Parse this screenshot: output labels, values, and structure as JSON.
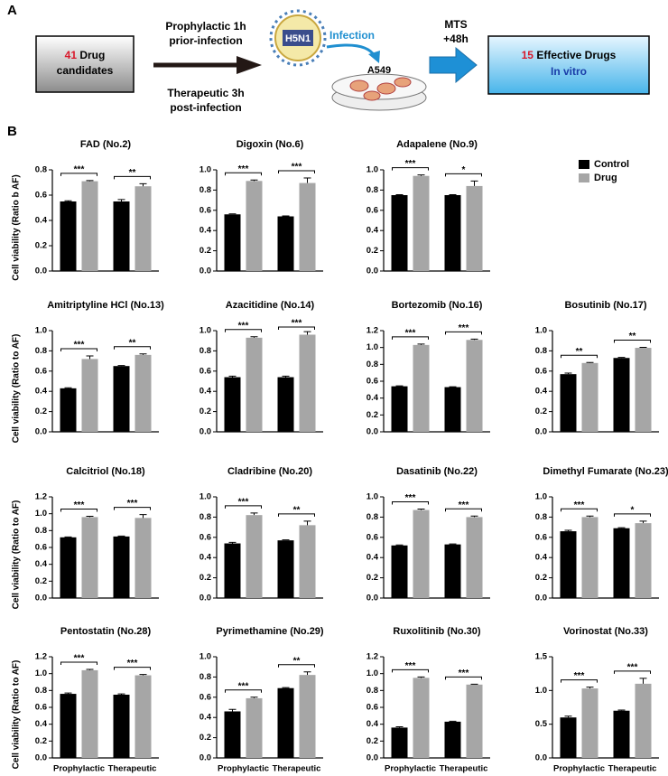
{
  "panel_a": {
    "label": "A",
    "box_left": {
      "number": "41",
      "line1": "Drug",
      "line2": "candidates"
    },
    "prophylactic": [
      "Prophylactic 1h",
      "prior-infection"
    ],
    "therapeutic": [
      "Therapeutic 3h",
      "post-infection"
    ],
    "virus": "H5N1",
    "infection": "Infection",
    "cell_line": "A549",
    "mts": [
      "MTS",
      "+48h"
    ],
    "box_right": {
      "number": "15",
      "line1": "Effective Drugs",
      "line2": "In vitro"
    }
  },
  "panel_b_label": "B",
  "chart_data": [
    {
      "type": "bar",
      "title": "FAD (No.2)",
      "ylabel": "Cell viability (Ratio b AF)",
      "categories": [
        null,
        null
      ],
      "series": [
        {
          "name": "Control",
          "color": "#000000",
          "values": [
            0.55,
            0.55
          ],
          "errors": [
            0.005,
            0.015
          ]
        },
        {
          "name": "Drug",
          "color": "#a6a6a6",
          "values": [
            0.71,
            0.67
          ],
          "errors": [
            0.005,
            0.02
          ]
        }
      ],
      "significance": [
        "***",
        "**"
      ],
      "ylim": [
        0,
        0.8
      ],
      "yticks": [
        {
          "value": 0,
          "label": "0.0"
        },
        0.2,
        0.4,
        0.6,
        0.8
      ]
    },
    {
      "type": "bar",
      "title": "Digoxin (No.6)",
      "categories": [
        null,
        null
      ],
      "series": [
        {
          "name": "Control",
          "color": "#000000",
          "values": [
            0.56,
            0.54
          ],
          "errors": [
            0.005,
            0.005
          ]
        },
        {
          "name": "Drug",
          "color": "#a6a6a6",
          "values": [
            0.89,
            0.87
          ],
          "errors": [
            0.01,
            0.05
          ]
        }
      ],
      "significance": [
        "***",
        "***"
      ],
      "ylim": [
        0,
        1
      ],
      "yticks": [
        {
          "value": 0,
          "label": "0.0"
        },
        0.2,
        0.4,
        0.6,
        0.8,
        {
          "value": 1,
          "label": "1.0"
        }
      ]
    },
    {
      "type": "bar",
      "title": "Adapalene (No.9)",
      "categories": [
        null,
        null
      ],
      "legend": "right",
      "series": [
        {
          "name": "Control",
          "color": "#000000",
          "values": [
            0.75,
            0.75
          ],
          "errors": [
            0.005,
            0.005
          ]
        },
        {
          "name": "Drug",
          "color": "#a6a6a6",
          "values": [
            0.94,
            0.84
          ],
          "errors": [
            0.01,
            0.05
          ]
        }
      ],
      "significance": [
        "***",
        "*"
      ],
      "ylim": [
        0,
        1
      ],
      "yticks": [
        {
          "value": 0,
          "label": "0.0"
        },
        0.2,
        0.4,
        0.6,
        0.8,
        {
          "value": 1,
          "label": "1.0"
        }
      ]
    },
    {
      "type": "bar",
      "title": "Amitriptyline HCl (No.13)",
      "ylabel": "Cell viability (Ratio to AF)",
      "categories": [
        null,
        null
      ],
      "series": [
        {
          "name": "Control",
          "color": "#000000",
          "values": [
            0.43,
            0.65
          ],
          "errors": [
            0.005,
            0.005
          ]
        },
        {
          "name": "Drug",
          "color": "#a6a6a6",
          "values": [
            0.72,
            0.76
          ],
          "errors": [
            0.03,
            0.01
          ]
        }
      ],
      "significance": [
        "***",
        "**"
      ],
      "ylim": [
        0,
        1
      ],
      "yticks": [
        {
          "value": 0,
          "label": "0.0"
        },
        0.2,
        0.4,
        0.6,
        0.8,
        {
          "value": 1,
          "label": "1.0"
        }
      ]
    },
    {
      "type": "bar",
      "title": "Azacitidine (No.14)",
      "categories": [
        null,
        null
      ],
      "series": [
        {
          "name": "Control",
          "color": "#000000",
          "values": [
            0.54,
            0.54
          ],
          "errors": [
            0.01,
            0.01
          ]
        },
        {
          "name": "Drug",
          "color": "#a6a6a6",
          "values": [
            0.93,
            0.96
          ],
          "errors": [
            0.01,
            0.03
          ]
        }
      ],
      "significance": [
        "***",
        "***"
      ],
      "ylim": [
        0,
        1
      ],
      "yticks": [
        {
          "value": 0,
          "label": "0.0"
        },
        0.2,
        0.4,
        0.6,
        0.8,
        {
          "value": 1,
          "label": "1.0"
        }
      ]
    },
    {
      "type": "bar",
      "title": "Bortezomib (No.16)",
      "categories": [
        null,
        null
      ],
      "series": [
        {
          "name": "Control",
          "color": "#000000",
          "values": [
            0.54,
            0.53
          ],
          "errors": [
            0.005,
            0.005
          ]
        },
        {
          "name": "Drug",
          "color": "#a6a6a6",
          "values": [
            1.03,
            1.09
          ],
          "errors": [
            0.01,
            0.01
          ]
        }
      ],
      "significance": [
        "***",
        "***"
      ],
      "ylim": [
        0,
        1.2
      ],
      "yticks": [
        {
          "value": 0,
          "label": "0.0"
        },
        0.2,
        0.4,
        0.6,
        0.8,
        {
          "value": 1,
          "label": "1.0"
        },
        1.2
      ]
    },
    {
      "type": "bar",
      "title": "Bosutinib (No.17)",
      "categories": [
        null,
        null
      ],
      "series": [
        {
          "name": "Control",
          "color": "#000000",
          "values": [
            0.57,
            0.73
          ],
          "errors": [
            0.01,
            0.005
          ]
        },
        {
          "name": "Drug",
          "color": "#a6a6a6",
          "values": [
            0.68,
            0.83
          ],
          "errors": [
            0.005,
            0.005
          ]
        }
      ],
      "significance": [
        "**",
        "**"
      ],
      "ylim": [
        0,
        1
      ],
      "yticks": [
        {
          "value": 0,
          "label": "0.0"
        },
        0.2,
        0.4,
        0.6,
        0.8,
        {
          "value": 1,
          "label": "1.0"
        }
      ]
    },
    {
      "type": "bar",
      "title": "Calcitriol (No.18)",
      "ylabel": "Cell viability (Ratio to AF)",
      "categories": [
        null,
        null
      ],
      "series": [
        {
          "name": "Control",
          "color": "#000000",
          "values": [
            0.72,
            0.73
          ],
          "errors": [
            0.005,
            0.005
          ]
        },
        {
          "name": "Drug",
          "color": "#a6a6a6",
          "values": [
            0.96,
            0.95
          ],
          "errors": [
            0.01,
            0.04
          ]
        }
      ],
      "significance": [
        "***",
        "***"
      ],
      "ylim": [
        0,
        1.2
      ],
      "yticks": [
        {
          "value": 0,
          "label": "0.0"
        },
        0.2,
        0.4,
        0.6,
        0.8,
        {
          "value": 1,
          "label": "1.0"
        },
        1.2
      ]
    },
    {
      "type": "bar",
      "title": "Cladribine (No.20)",
      "categories": [
        null,
        null
      ],
      "series": [
        {
          "name": "Control",
          "color": "#000000",
          "values": [
            0.54,
            0.57
          ],
          "errors": [
            0.01,
            0.005
          ]
        },
        {
          "name": "Drug",
          "color": "#a6a6a6",
          "values": [
            0.82,
            0.72
          ],
          "errors": [
            0.02,
            0.04
          ]
        }
      ],
      "significance": [
        "***",
        "**"
      ],
      "ylim": [
        0,
        1
      ],
      "yticks": [
        {
          "value": 0,
          "label": "0.0"
        },
        0.2,
        0.4,
        0.6,
        0.8,
        {
          "value": 1,
          "label": "1.0"
        }
      ]
    },
    {
      "type": "bar",
      "title": "Dasatinib (No.22)",
      "categories": [
        null,
        null
      ],
      "series": [
        {
          "name": "Control",
          "color": "#000000",
          "values": [
            0.52,
            0.53
          ],
          "errors": [
            0.005,
            0.005
          ]
        },
        {
          "name": "Drug",
          "color": "#a6a6a6",
          "values": [
            0.87,
            0.8
          ],
          "errors": [
            0.01,
            0.01
          ]
        }
      ],
      "significance": [
        "***",
        "***"
      ],
      "ylim": [
        0,
        1
      ],
      "yticks": [
        {
          "value": 0,
          "label": "0.0"
        },
        0.2,
        0.4,
        0.6,
        0.8,
        {
          "value": 1,
          "label": "1.0"
        }
      ]
    },
    {
      "type": "bar",
      "title": "Dimethyl Fumarate (No.23)",
      "categories": [
        null,
        null
      ],
      "series": [
        {
          "name": "Control",
          "color": "#000000",
          "values": [
            0.66,
            0.69
          ],
          "errors": [
            0.01,
            0.005
          ]
        },
        {
          "name": "Drug",
          "color": "#a6a6a6",
          "values": [
            0.8,
            0.74
          ],
          "errors": [
            0.01,
            0.02
          ]
        }
      ],
      "significance": [
        "***",
        "*"
      ],
      "ylim": [
        0,
        1
      ],
      "yticks": [
        {
          "value": 0,
          "label": "0.0"
        },
        0.2,
        0.4,
        0.6,
        0.8,
        {
          "value": 1,
          "label": "1.0"
        }
      ]
    },
    {
      "type": "bar",
      "title": "Pentostatin (No.28)",
      "ylabel": "Cell viability (Ratio to AF)",
      "categories": [
        "Prophylactic",
        "Therapeutic"
      ],
      "series": [
        {
          "name": "Control",
          "color": "#000000",
          "values": [
            0.76,
            0.75
          ],
          "errors": [
            0.01,
            0.01
          ]
        },
        {
          "name": "Drug",
          "color": "#a6a6a6",
          "values": [
            1.04,
            0.98
          ],
          "errors": [
            0.01,
            0.01
          ]
        }
      ],
      "significance": [
        "***",
        "***"
      ],
      "ylim": [
        0,
        1.2
      ],
      "yticks": [
        {
          "value": 0,
          "label": "0.0"
        },
        0.2,
        0.4,
        0.6,
        0.8,
        {
          "value": 1,
          "label": "1.0"
        },
        1.2
      ]
    },
    {
      "type": "bar",
      "title": "Pyrimethamine (No.29)",
      "categories": [
        "Prophylactic",
        "Therapeutic"
      ],
      "series": [
        {
          "name": "Control",
          "color": "#000000",
          "values": [
            0.46,
            0.69
          ],
          "errors": [
            0.02,
            0.005
          ]
        },
        {
          "name": "Drug",
          "color": "#a6a6a6",
          "values": [
            0.59,
            0.82
          ],
          "errors": [
            0.01,
            0.03
          ]
        }
      ],
      "significance": [
        "***",
        "**"
      ],
      "ylim": [
        0,
        1
      ],
      "yticks": [
        {
          "value": 0,
          "label": "0.0"
        },
        0.2,
        0.4,
        0.6,
        0.8,
        {
          "value": 1,
          "label": "1.0"
        }
      ]
    },
    {
      "type": "bar",
      "title": "Ruxolitinib (No.30)",
      "categories": [
        "Prophylactic",
        "Therapeutic"
      ],
      "series": [
        {
          "name": "Control",
          "color": "#000000",
          "values": [
            0.36,
            0.43
          ],
          "errors": [
            0.01,
            0.005
          ]
        },
        {
          "name": "Drug",
          "color": "#a6a6a6",
          "values": [
            0.95,
            0.87
          ],
          "errors": [
            0.01,
            0.005
          ]
        }
      ],
      "significance": [
        "***",
        "***"
      ],
      "ylim": [
        0,
        1.2
      ],
      "yticks": [
        {
          "value": 0,
          "label": "0.0"
        },
        0.2,
        0.4,
        0.6,
        0.8,
        {
          "value": 1,
          "label": "1.0"
        },
        1.2
      ]
    },
    {
      "type": "bar",
      "title": "Vorinostat (No.33)",
      "categories": [
        "Prophylactic",
        "Therapeutic"
      ],
      "series": [
        {
          "name": "Control",
          "color": "#000000",
          "values": [
            0.6,
            0.7
          ],
          "errors": [
            0.02,
            0.01
          ]
        },
        {
          "name": "Drug",
          "color": "#a6a6a6",
          "values": [
            1.03,
            1.1
          ],
          "errors": [
            0.02,
            0.08
          ]
        }
      ],
      "significance": [
        "***",
        "***"
      ],
      "ylim": [
        0,
        1.5
      ],
      "yticks": [
        {
          "value": 0,
          "label": "0.0"
        },
        0.5,
        {
          "value": 1,
          "label": "1.0"
        },
        1.5
      ]
    }
  ]
}
